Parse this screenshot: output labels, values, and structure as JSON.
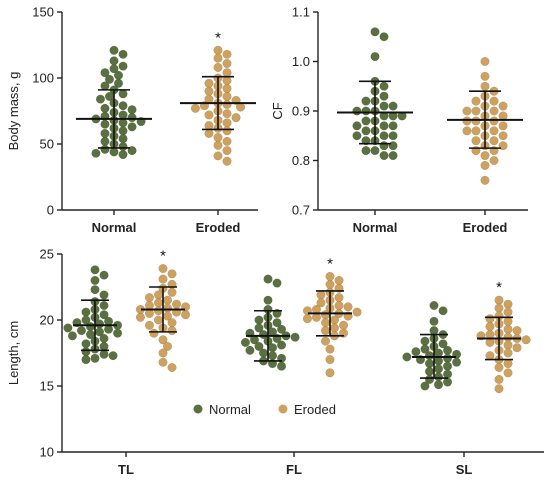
{
  "colors": {
    "normal": "#5a7040",
    "eroded": "#cfa15e",
    "axis": "#222222"
  },
  "legend": {
    "position": "bottom-center",
    "items": [
      {
        "label": "Normal",
        "key": "normal"
      },
      {
        "label": "Eroded",
        "key": "eroded"
      }
    ]
  },
  "chart_data": [
    {
      "id": "body-mass",
      "type": "scatter",
      "ylabel": "Body mass, g",
      "ylim": [
        0,
        150
      ],
      "yticks": [
        0,
        50,
        100,
        150
      ],
      "categories": [
        "Normal",
        "Eroded"
      ],
      "groups": [
        {
          "category": "Normal",
          "color_key": "normal",
          "mean": 69,
          "sd_low": 47,
          "sd_high": 91,
          "significant": false,
          "values": [
            121,
            118,
            113,
            109,
            107,
            104,
            102,
            99,
            96,
            94,
            91,
            88,
            86,
            84,
            81,
            79,
            77,
            76,
            74,
            72,
            71,
            70,
            69,
            68,
            67,
            66,
            65,
            63,
            62,
            60,
            58,
            56,
            54,
            52,
            50,
            48,
            46,
            45,
            44,
            43,
            42
          ]
        },
        {
          "category": "Eroded",
          "color_key": "eroded",
          "mean": 81,
          "sd_low": 61,
          "sd_high": 101,
          "significant": true,
          "values": [
            121,
            118,
            115,
            111,
            108,
            104,
            100,
            98,
            96,
            94,
            92,
            90,
            88,
            86,
            84,
            83,
            81,
            80,
            79,
            78,
            77,
            75,
            73,
            72,
            70,
            68,
            66,
            64,
            62,
            60,
            58,
            55,
            52,
            49,
            45,
            41,
            37
          ]
        }
      ]
    },
    {
      "id": "cf",
      "type": "scatter",
      "ylabel": "CF",
      "ylim": [
        0.7,
        1.1
      ],
      "yticks": [
        0.7,
        0.8,
        0.9,
        1.0,
        1.1
      ],
      "ytick_labels": [
        "0.7",
        "0.8",
        "0.9",
        "1.0",
        "1.1"
      ],
      "categories": [
        "Normal",
        "Eroded"
      ],
      "groups": [
        {
          "category": "Normal",
          "color_key": "normal",
          "mean": 0.897,
          "sd_low": 0.834,
          "sd_high": 0.96,
          "significant": false,
          "values": [
            1.06,
            1.05,
            1.01,
            0.96,
            0.95,
            0.94,
            0.93,
            0.92,
            0.92,
            0.91,
            0.91,
            0.9,
            0.9,
            0.9,
            0.89,
            0.89,
            0.89,
            0.88,
            0.88,
            0.87,
            0.87,
            0.87,
            0.86,
            0.86,
            0.85,
            0.85,
            0.85,
            0.84,
            0.84,
            0.83,
            0.83,
            0.82,
            0.82,
            0.81,
            0.81
          ]
        },
        {
          "category": "Eroded",
          "color_key": "eroded",
          "mean": 0.882,
          "sd_low": 0.825,
          "sd_high": 0.94,
          "significant": false,
          "values": [
            1.0,
            0.97,
            0.95,
            0.94,
            0.93,
            0.92,
            0.92,
            0.91,
            0.91,
            0.9,
            0.9,
            0.9,
            0.89,
            0.89,
            0.88,
            0.88,
            0.88,
            0.87,
            0.87,
            0.86,
            0.86,
            0.86,
            0.85,
            0.85,
            0.84,
            0.84,
            0.83,
            0.83,
            0.82,
            0.82,
            0.81,
            0.8,
            0.79,
            0.76
          ]
        }
      ]
    },
    {
      "id": "length",
      "type": "scatter",
      "ylabel": "Length, cm",
      "ylim": [
        10,
        25
      ],
      "yticks": [
        10,
        15,
        20,
        25
      ],
      "categories": [
        "TL",
        "FL",
        "SL"
      ],
      "groups": [
        {
          "category": "TL",
          "color_key": "normal",
          "mean": 19.6,
          "sd_low": 17.7,
          "sd_high": 21.5,
          "significant": false,
          "values": [
            23.8,
            23.4,
            23.0,
            22.3,
            21.9,
            21.4,
            21.1,
            20.8,
            20.6,
            20.4,
            20.2,
            20.0,
            19.9,
            19.8,
            19.7,
            19.6,
            19.5,
            19.4,
            19.3,
            19.2,
            19.1,
            19.0,
            18.9,
            18.8,
            18.6,
            18.4,
            18.2,
            18.0,
            17.8,
            17.6,
            17.4,
            17.3,
            17.1,
            17.0
          ]
        },
        {
          "category": "TL",
          "color_key": "eroded",
          "mean": 20.8,
          "sd_low": 19.1,
          "sd_high": 22.5,
          "significant": true,
          "values": [
            23.9,
            23.5,
            23.1,
            22.7,
            22.4,
            22.1,
            21.9,
            21.7,
            21.5,
            21.3,
            21.2,
            21.1,
            21.0,
            20.9,
            20.8,
            20.7,
            20.6,
            20.5,
            20.4,
            20.3,
            20.2,
            20.0,
            19.8,
            19.6,
            19.4,
            19.2,
            19.0,
            18.5,
            18.0,
            17.5,
            16.8,
            16.4
          ]
        },
        {
          "category": "FL",
          "color_key": "normal",
          "mean": 18.8,
          "sd_low": 16.9,
          "sd_high": 20.7,
          "significant": false,
          "values": [
            23.1,
            22.8,
            21.5,
            20.8,
            20.5,
            20.2,
            20.0,
            19.8,
            19.6,
            19.4,
            19.3,
            19.1,
            19.0,
            18.9,
            18.8,
            18.7,
            18.6,
            18.5,
            18.4,
            18.3,
            18.1,
            18.0,
            17.9,
            17.7,
            17.5,
            17.3,
            17.1,
            16.9,
            16.7,
            16.5
          ]
        },
        {
          "category": "FL",
          "color_key": "eroded",
          "mean": 20.5,
          "sd_low": 18.8,
          "sd_high": 22.2,
          "significant": true,
          "values": [
            23.3,
            23.0,
            22.7,
            22.4,
            22.1,
            21.9,
            21.7,
            21.5,
            21.3,
            21.1,
            21.0,
            20.9,
            20.8,
            20.7,
            20.6,
            20.5,
            20.4,
            20.3,
            20.2,
            20.1,
            20.0,
            19.8,
            19.6,
            19.4,
            19.2,
            19.0,
            18.8,
            18.4,
            17.8,
            17.0,
            16.0
          ]
        },
        {
          "category": "SL",
          "color_key": "normal",
          "mean": 17.2,
          "sd_low": 15.6,
          "sd_high": 18.9,
          "significant": false,
          "values": [
            21.1,
            20.7,
            19.9,
            19.2,
            18.9,
            18.6,
            18.4,
            18.2,
            18.0,
            17.8,
            17.7,
            17.6,
            17.5,
            17.4,
            17.3,
            17.2,
            17.1,
            17.0,
            16.9,
            16.8,
            16.7,
            16.5,
            16.3,
            16.1,
            15.9,
            15.7,
            15.5,
            15.3,
            15.1,
            15.0
          ]
        },
        {
          "category": "SL",
          "color_key": "eroded",
          "mean": 18.6,
          "sd_low": 17.0,
          "sd_high": 20.2,
          "significant": true,
          "values": [
            21.5,
            21.2,
            20.9,
            20.6,
            20.3,
            20.1,
            19.9,
            19.7,
            19.5,
            19.3,
            19.2,
            19.0,
            18.9,
            18.8,
            18.7,
            18.6,
            18.5,
            18.4,
            18.3,
            18.1,
            17.9,
            17.7,
            17.5,
            17.3,
            17.0,
            16.7,
            16.4,
            16.0,
            15.5,
            14.8
          ]
        }
      ]
    }
  ]
}
